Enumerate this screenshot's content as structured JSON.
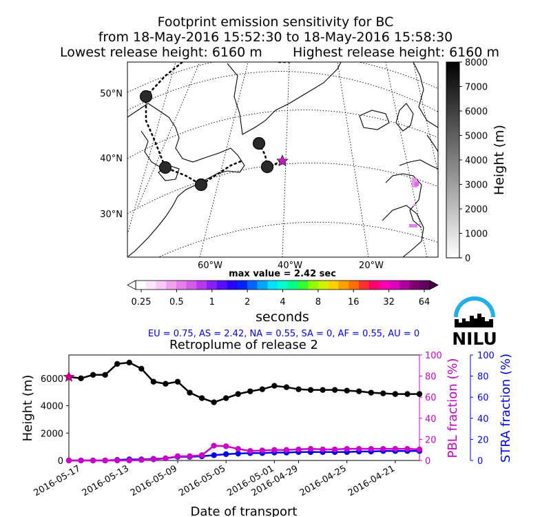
{
  "header": {
    "title_line1": "Footprint emission sensitivity for BC",
    "title_line2": "from 18-May-2016 15:52:30 to 18-May-2016 15:58:30",
    "title_line3_left": "Lowest release height: 6160 m",
    "title_line3_right": "Highest release height: 6160 m"
  },
  "map": {
    "lat_labels": [
      "50°N",
      "40°N",
      "30°N"
    ],
    "lon_labels": [
      "60°W",
      "40°W",
      "20°W"
    ],
    "height_colorbar": {
      "label": "Height (m)",
      "ticks": [
        "8000",
        "7000",
        "6000",
        "5000",
        "4000",
        "3000",
        "2000",
        "1000",
        "0"
      ],
      "range": [
        0,
        8000
      ]
    },
    "max_value_text": "max value = 2.42 sec",
    "sensitivity_colorbar": {
      "ticks": [
        "0.25",
        "0.5",
        "1",
        "2",
        "4",
        "8",
        "16",
        "32",
        "64"
      ],
      "label": "seconds"
    },
    "logo_text": "NILU",
    "fractions_text": "EU = 0.75,  AS = 2.42,  NA = 0.55,  SA = 0,  AF = 0.55,  AU = 0",
    "colors": {
      "release_star": "#c020c0",
      "trajectory_marker": "#2a2a2a",
      "logo_arc": "#22aee6"
    }
  },
  "chart_data": {
    "type": "line",
    "title": "Retroplume of release 2",
    "xlabel": "Date of transport",
    "x_tick_labels": [
      "2016-05-17",
      "2016-05-13",
      "2016-05-09",
      "2016-05-05",
      "2016-05-01",
      "2016-04-29",
      "2016-04-25",
      "2016-04-21"
    ],
    "y_left": {
      "label": "Height (m)",
      "ticks": [
        "0",
        "2000",
        "4000",
        "6000"
      ],
      "range": [
        0,
        7700
      ]
    },
    "y_right_pbl": {
      "label": "PBL fraction (%)",
      "ticks": [
        "0",
        "20",
        "40",
        "60",
        "80",
        "100"
      ],
      "range": [
        0,
        100
      ]
    },
    "y_right_stra": {
      "label": "STRA fraction (%)",
      "ticks": [
        "0",
        "20",
        "40",
        "60",
        "80",
        "100"
      ],
      "range": [
        0,
        100
      ]
    },
    "series": [
      {
        "axis": "left",
        "color": "#000000",
        "values": [
          6100,
          6000,
          6250,
          6250,
          7050,
          7150,
          6700,
          5750,
          5600,
          5750,
          4950,
          4550,
          4250,
          4550,
          4850,
          5050,
          5200,
          5450,
          5350,
          5200,
          5150,
          5150,
          5150,
          5100,
          5050,
          4950,
          4900,
          4850,
          4850,
          4850
        ]
      },
      {
        "axis": "pbl",
        "color": "#cc00cc",
        "values": [
          0,
          0,
          0,
          0,
          0,
          0,
          0.5,
          1,
          2,
          4,
          4,
          5,
          14,
          13.5,
          11,
          9,
          9.5,
          10,
          10,
          10.5,
          11,
          10.5,
          10.5,
          11,
          11,
          11,
          11,
          11,
          11,
          10.5
        ]
      },
      {
        "axis": "stra",
        "color": "#0000ee",
        "values": [
          0,
          0,
          0,
          0,
          0.5,
          1,
          1,
          1.5,
          2,
          3.5,
          3.5,
          4,
          5,
          6,
          6.5,
          7,
          7,
          7.5,
          7.5,
          8,
          8,
          8,
          8,
          8,
          8.5,
          8.5,
          9,
          9,
          9,
          9
        ]
      }
    ]
  }
}
